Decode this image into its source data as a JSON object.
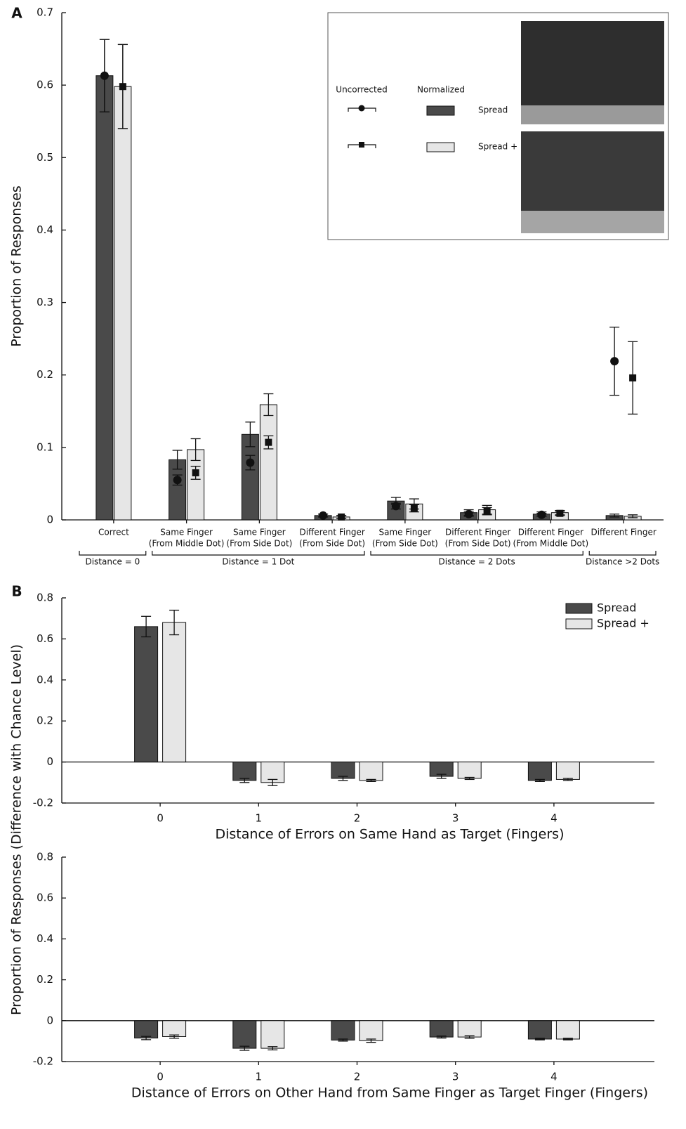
{
  "chart_data": [
    {
      "type": "bar",
      "panel": "A",
      "ylabel": "Proportion of Responses",
      "ylim": [
        0,
        0.7
      ],
      "yticks": [
        0,
        0.1,
        0.2,
        0.3,
        0.4,
        0.5,
        0.6,
        0.7
      ],
      "groups": [
        {
          "label": "Distance = 0",
          "categories": [
            [
              "Correct"
            ]
          ]
        },
        {
          "label": "Distance = 1 Dot",
          "categories": [
            [
              "Same Finger",
              "(From Middle Dot)"
            ],
            [
              "Same Finger",
              "(From Side Dot)"
            ],
            [
              "Different Finger",
              "(From Side Dot)"
            ]
          ]
        },
        {
          "label": "Distance = 2 Dots",
          "categories": [
            [
              "Same Finger",
              "(From Side Dot)"
            ],
            [
              "Different Finger",
              "(From Side Dot)"
            ],
            [
              "Different Finger",
              "(From Middle Dot)"
            ]
          ]
        },
        {
          "label": "Distance >2 Dots",
          "categories": [
            [
              "Different Finger"
            ]
          ]
        }
      ],
      "legend": "upper right",
      "legend_titles": [
        "Uncorrected",
        "Normalized"
      ],
      "series": [
        {
          "name": "Spread",
          "color": "#4a4a4a",
          "marker": "circle",
          "values": [
            0.613,
            0.083,
            0.118,
            0.006,
            0.026,
            0.01,
            0.008,
            0.006
          ],
          "errors": [
            0.05,
            0.013,
            0.017,
            0.002,
            0.005,
            0.004,
            0.003,
            0.002
          ],
          "uncorrected": [
            0.613,
            0.055,
            0.079,
            0.006,
            0.019,
            0.008,
            0.007,
            0.219
          ],
          "uncorrected_errors": [
            0.05,
            0.007,
            0.01,
            0.002,
            0.004,
            0.003,
            0.002,
            0.047
          ]
        },
        {
          "name": "Spread +",
          "color": "#e6e6e6",
          "marker": "square",
          "values": [
            0.598,
            0.097,
            0.159,
            0.004,
            0.022,
            0.014,
            0.01,
            0.005
          ],
          "errors": [
            0.058,
            0.015,
            0.015,
            0.002,
            0.007,
            0.006,
            0.003,
            0.002
          ],
          "uncorrected": [
            0.598,
            0.065,
            0.107,
            0.004,
            0.016,
            0.012,
            0.009,
            0.196
          ],
          "uncorrected_errors": [
            0.058,
            0.009,
            0.009,
            0.002,
            0.005,
            0.005,
            0.003,
            0.05
          ]
        }
      ]
    },
    {
      "type": "bar",
      "panel": "B",
      "ylabel": "Proportion of Responses (Difference with Chance Level)",
      "xlabel": "Distance of Errors on Same Hand as Target (Fingers)",
      "categories": [
        "0",
        "1",
        "2",
        "3",
        "4"
      ],
      "ylim": [
        -0.2,
        0.8
      ],
      "yticks": [
        -0.2,
        0,
        0.2,
        0.4,
        0.6,
        0.8
      ],
      "legend": "upper right",
      "series": [
        {
          "name": "Spread",
          "color": "#4a4a4a",
          "values": [
            0.66,
            -0.09,
            -0.08,
            -0.07,
            -0.09
          ],
          "errors": [
            0.05,
            0.01,
            0.01,
            0.01,
            0.005
          ]
        },
        {
          "name": "Spread +",
          "color": "#e6e6e6",
          "values": [
            0.68,
            -0.1,
            -0.09,
            -0.08,
            -0.085
          ],
          "errors": [
            0.06,
            0.015,
            0.005,
            0.005,
            0.005
          ]
        }
      ]
    },
    {
      "type": "bar",
      "xlabel": "Distance of Errors on Other Hand from Same Finger as Target Finger (Fingers)",
      "categories": [
        "0",
        "1",
        "2",
        "3",
        "4"
      ],
      "ylim": [
        -0.2,
        0.8
      ],
      "yticks": [
        -0.2,
        0,
        0.2,
        0.4,
        0.6,
        0.8
      ],
      "series": [
        {
          "name": "Spread",
          "color": "#4a4a4a",
          "values": [
            -0.085,
            -0.135,
            -0.095,
            -0.08,
            -0.09
          ],
          "errors": [
            0.008,
            0.01,
            0.005,
            0.005,
            0.004
          ]
        },
        {
          "name": "Spread +",
          "color": "#e6e6e6",
          "values": [
            -0.078,
            -0.135,
            -0.098,
            -0.08,
            -0.09
          ],
          "errors": [
            0.008,
            0.008,
            0.008,
            0.006,
            0.004
          ]
        }
      ]
    }
  ]
}
